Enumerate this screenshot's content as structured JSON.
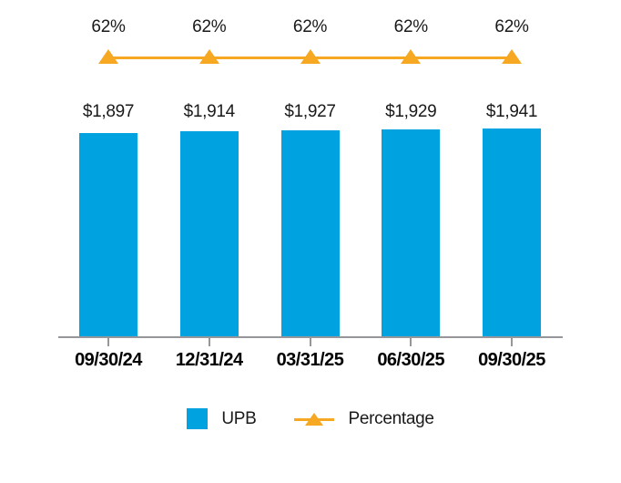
{
  "chart_data": {
    "type": "bar",
    "title": "",
    "categories": [
      "09/30/24",
      "12/31/24",
      "03/31/25",
      "06/30/25",
      "09/30/25"
    ],
    "series": [
      {
        "name": "UPB",
        "type": "bar",
        "values": [
          1897,
          1914,
          1927,
          1929,
          1941
        ],
        "data_labels": [
          "$1,897",
          "$1,914",
          "$1,927",
          "$1,929",
          "$1,941"
        ],
        "color": "#00A3E0"
      },
      {
        "name": "Percentage",
        "type": "line",
        "values": [
          62,
          62,
          62,
          62,
          62
        ],
        "data_labels": [
          "62%",
          "62%",
          "62%",
          "62%",
          "62%"
        ],
        "color": "#F7A823",
        "marker": "triangle-up"
      }
    ],
    "ylim": [
      0,
      2000
    ],
    "y2lim": [
      0,
      100
    ],
    "grid": false,
    "x_axis_visible": true,
    "y_axis_visible": false,
    "axis_color": "#97979B",
    "text_color": "#1A1A1A",
    "category_label_color": "#000000",
    "legend_position": "bottom",
    "legend": [
      {
        "label": "UPB",
        "swatch": "square",
        "color": "#00A3E0"
      },
      {
        "label": "Percentage",
        "swatch": "line-triangle",
        "color": "#F7A823"
      }
    ]
  }
}
